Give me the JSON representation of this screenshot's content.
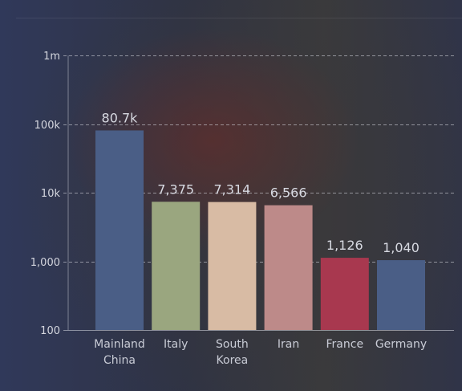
{
  "chart_data": {
    "type": "bar",
    "title": "",
    "xlabel": "",
    "ylabel": "",
    "yscale": "log",
    "ylim": [
      100,
      1000000
    ],
    "yticks": [
      {
        "value": 100,
        "label": "100"
      },
      {
        "value": 1000,
        "label": "1,000"
      },
      {
        "value": 10000,
        "label": "10k"
      },
      {
        "value": 100000,
        "label": "100k"
      },
      {
        "value": 1000000,
        "label": "1m"
      }
    ],
    "grid": true,
    "legend": "none",
    "categories": [
      [
        "Mainland",
        "China"
      ],
      [
        "Italy"
      ],
      [
        "South",
        "Korea"
      ],
      [
        "Iran"
      ],
      [
        "France"
      ],
      [
        "Germany"
      ]
    ],
    "values": [
      80700,
      7375,
      7314,
      6566,
      1126,
      1040
    ],
    "data_labels": [
      "80.7k",
      "7,375",
      "7,314",
      "6,566",
      "1,126",
      "1,040"
    ],
    "colors": [
      "#4a5e86",
      "#9aa67f",
      "#d8bba4",
      "#bd8a89",
      "#a8384f",
      "#4a5e86"
    ]
  }
}
